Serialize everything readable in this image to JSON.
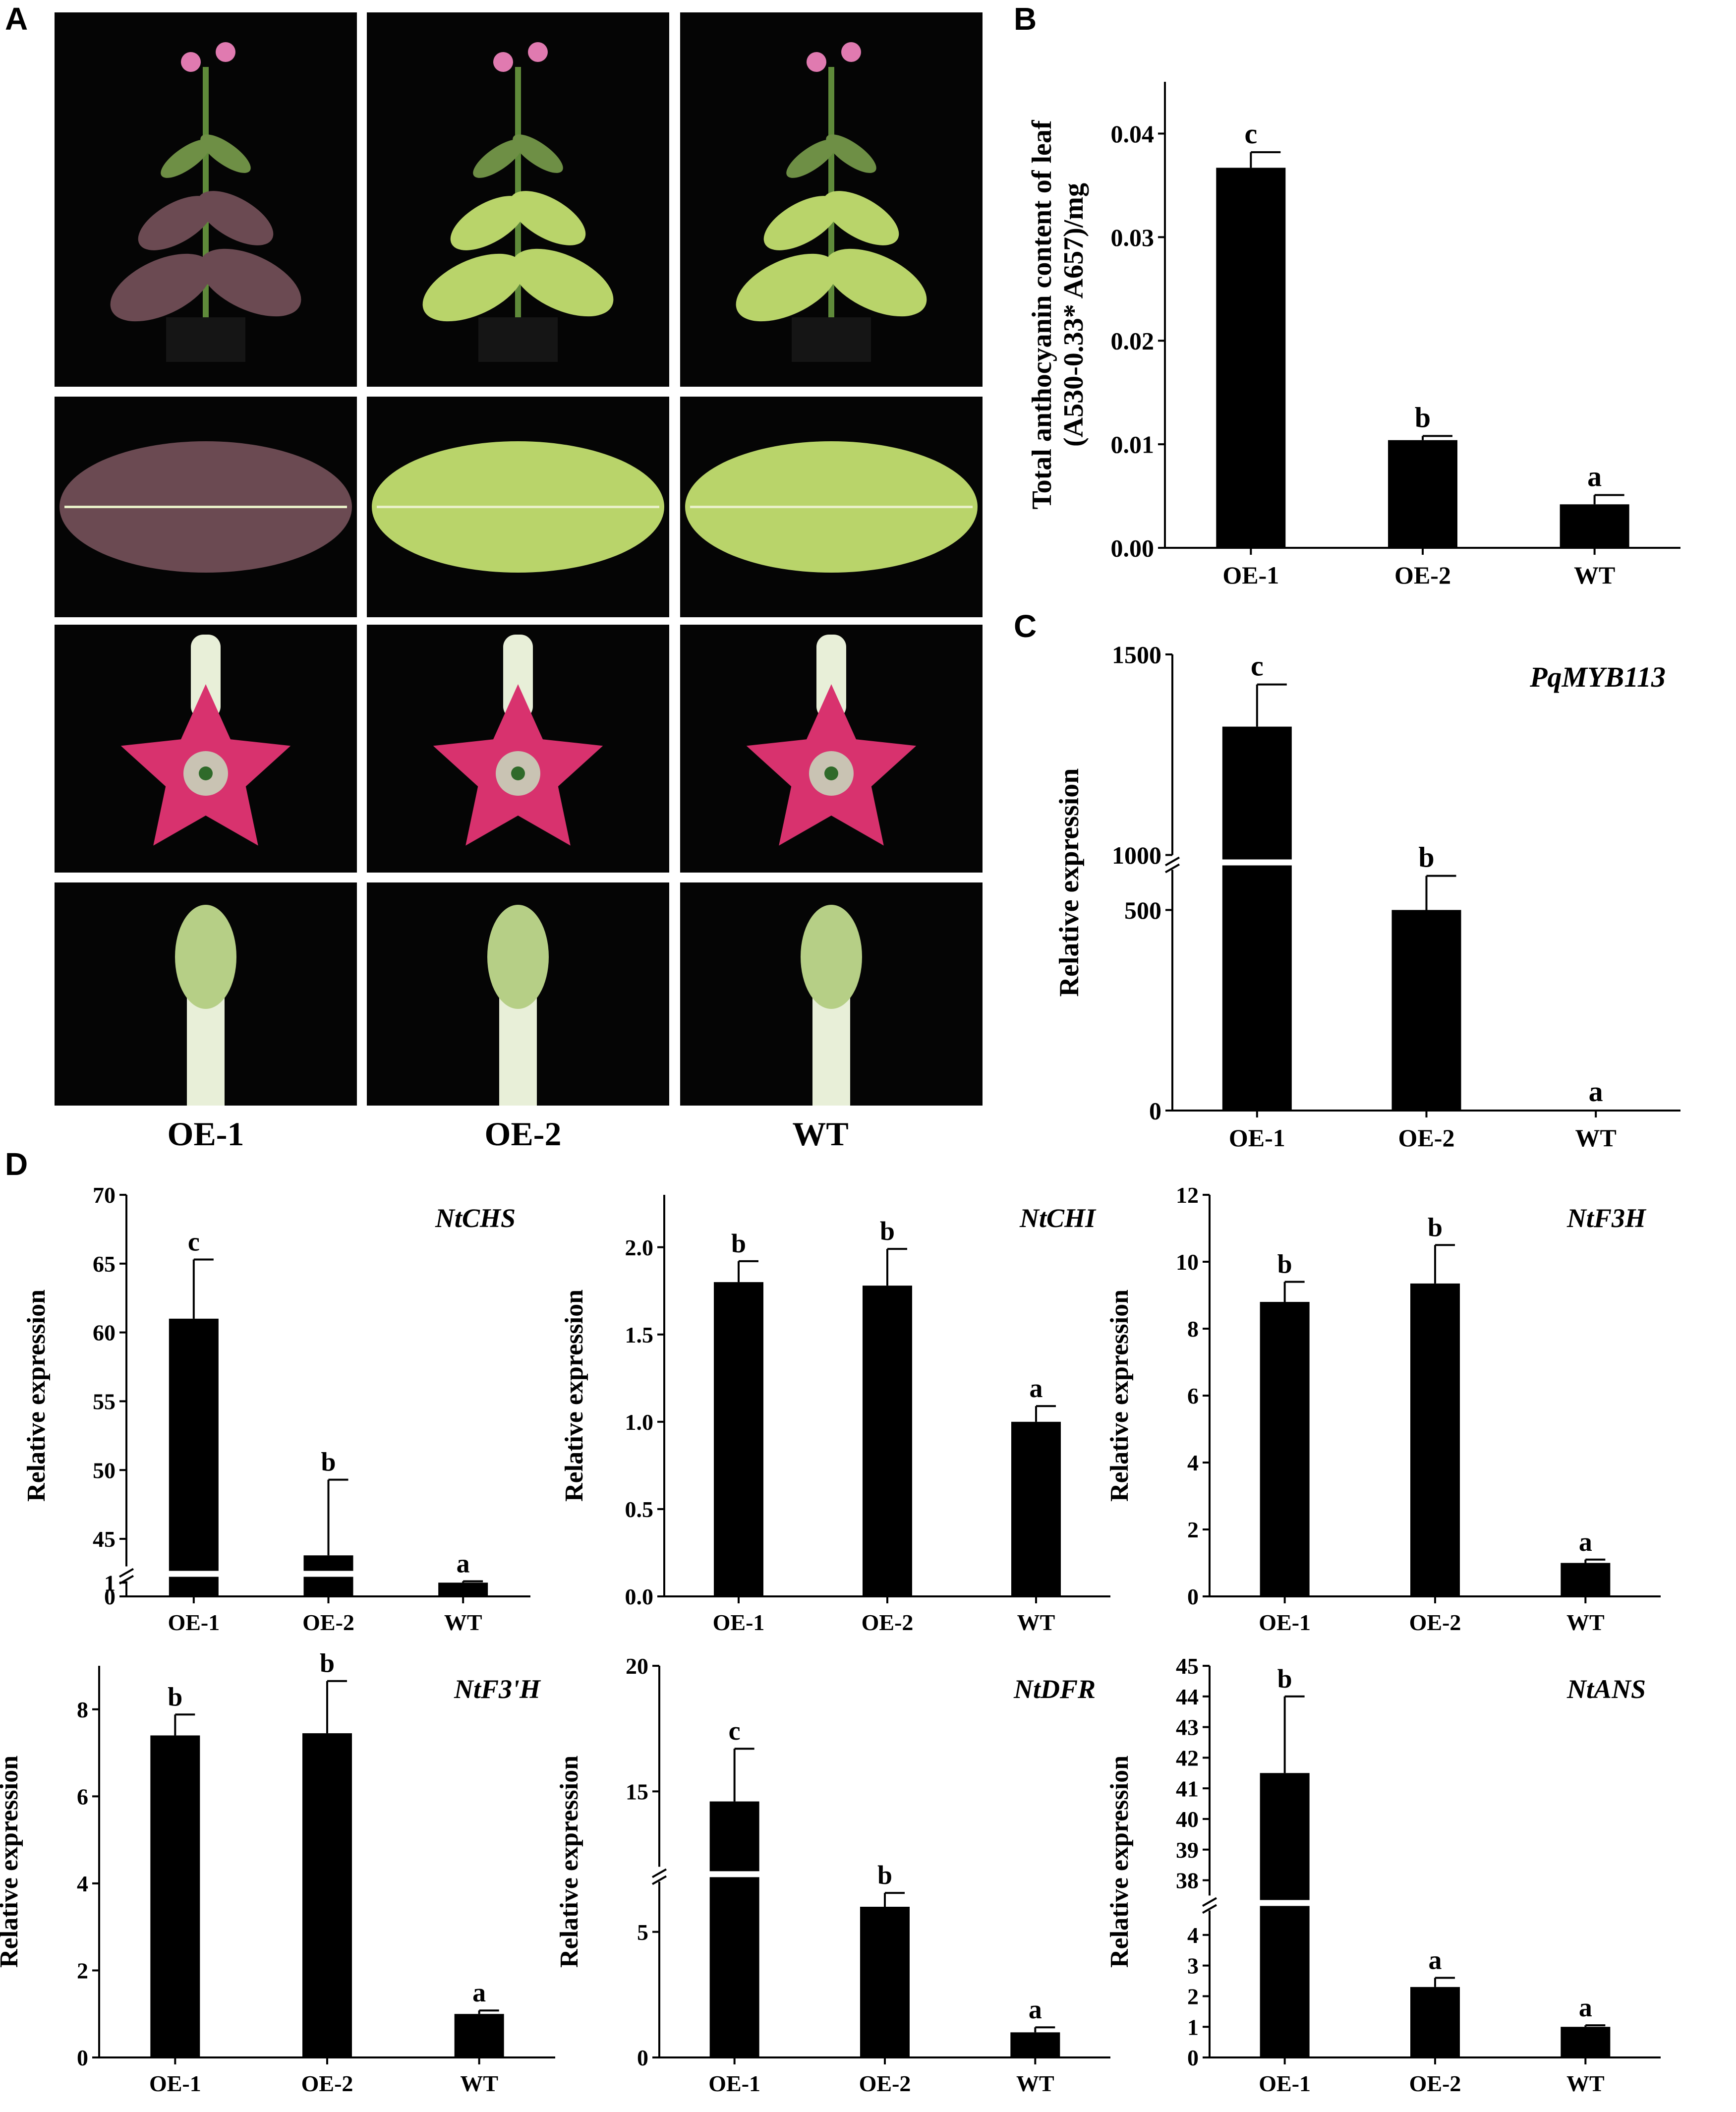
{
  "figure": {
    "panel_letters": [
      "A",
      "B",
      "C",
      "D"
    ],
    "photo_column_labels": [
      "OE-1",
      "OE-2",
      "WT"
    ],
    "photo_rows": [
      "whole plant",
      "leaf",
      "flower",
      "flower bud"
    ],
    "colors": {
      "bar": "#000000",
      "background_photo": "#050505",
      "leaf_purple": "#6b4a52",
      "leaf_green": "#b9d46a",
      "flower_pink": "#d8326e",
      "stem": "#e8efd8"
    }
  },
  "chart_data": [
    {
      "id": "B",
      "type": "bar",
      "categories": [
        "OE-1",
        "OE-2",
        "WT"
      ],
      "values": [
        0.0367,
        0.0104,
        0.0042
      ],
      "errors": [
        0.0015,
        0.0004,
        0.0009
      ],
      "letters": [
        "c",
        "b",
        "a"
      ],
      "ylabel_lines": [
        "Total anthocyanin content of leaf",
        "(A530-0.33* A657)/mg"
      ],
      "ylim": [
        0,
        0.045
      ],
      "yticks": [
        0.0,
        0.01,
        0.02,
        0.03,
        0.04
      ],
      "ytick_labels": [
        "0.00",
        "0.01",
        "0.02",
        "0.03",
        "0.04"
      ],
      "gene": ""
    },
    {
      "id": "C",
      "type": "bar",
      "categories": [
        "OE-1",
        "OE-2",
        "WT"
      ],
      "values": [
        1320,
        500,
        1
      ],
      "errors": [
        105,
        85,
        0
      ],
      "letters": [
        "c",
        "b",
        "a"
      ],
      "ylabel_lines": [
        "Relative expression"
      ],
      "gene": "PqMYB113",
      "axis_break": {
        "low": [
          0,
          600
        ],
        "high": [
          1000,
          1500
        ]
      },
      "yticks": [
        0,
        500,
        1000,
        1500
      ],
      "ytick_labels": [
        "0",
        "500",
        "1000",
        "1500"
      ]
    },
    {
      "id": "D1",
      "type": "bar",
      "categories": [
        "OE-1",
        "OE-2",
        "WT"
      ],
      "values": [
        61,
        43.8,
        1
      ],
      "errors": [
        4.3,
        5.5,
        0.1
      ],
      "letters": [
        "c",
        "b",
        "a"
      ],
      "ylabel_lines": [
        "Relative expression"
      ],
      "gene": "NtCHS",
      "axis_break": {
        "low": [
          0,
          1.1
        ],
        "high": [
          43,
          70
        ]
      },
      "yticks": [
        0,
        1,
        45,
        50,
        55,
        60,
        65,
        70
      ],
      "ytick_labels": [
        "0",
        "1",
        "45",
        "50",
        "55",
        "60",
        "65",
        "70"
      ]
    },
    {
      "id": "D2",
      "type": "bar",
      "categories": [
        "OE-1",
        "OE-2",
        "WT"
      ],
      "values": [
        1.8,
        1.78,
        1.0
      ],
      "errors": [
        0.12,
        0.21,
        0.09
      ],
      "letters": [
        "b",
        "b",
        "a"
      ],
      "ylabel_lines": [
        "Relative expression"
      ],
      "gene": "NtCHI",
      "ylim": [
        0,
        2.3
      ],
      "yticks": [
        0.0,
        0.5,
        1.0,
        1.5,
        2.0
      ],
      "ytick_labels": [
        "0.0",
        "0.5",
        "1.0",
        "1.5",
        "2.0"
      ]
    },
    {
      "id": "D3",
      "type": "bar",
      "categories": [
        "OE-1",
        "OE-2",
        "WT"
      ],
      "values": [
        8.8,
        9.35,
        1.0
      ],
      "errors": [
        0.6,
        1.15,
        0.1
      ],
      "letters": [
        "b",
        "b",
        "a"
      ],
      "ylabel_lines": [
        "Relative expression"
      ],
      "gene": "NtF3H",
      "ylim": [
        0,
        12
      ],
      "yticks": [
        0,
        2,
        4,
        6,
        8,
        10,
        12
      ],
      "ytick_labels": [
        "0",
        "2",
        "4",
        "6",
        "8",
        "10",
        "12"
      ]
    },
    {
      "id": "D4",
      "type": "bar",
      "categories": [
        "OE-1",
        "OE-2",
        "WT"
      ],
      "values": [
        7.4,
        7.45,
        1.0
      ],
      "errors": [
        0.48,
        1.2,
        0.08
      ],
      "letters": [
        "b",
        "b",
        "a"
      ],
      "ylabel_lines": [
        "Relative expression"
      ],
      "gene": "NtF3'H",
      "ylim": [
        0,
        9
      ],
      "yticks": [
        0,
        2,
        4,
        6,
        8
      ],
      "ytick_labels": [
        "0",
        "2",
        "4",
        "6",
        "8"
      ]
    },
    {
      "id": "D5",
      "type": "bar",
      "categories": [
        "OE-1",
        "OE-2",
        "WT"
      ],
      "values": [
        14.6,
        6.0,
        1.0
      ],
      "errors": [
        2.1,
        0.55,
        0.2
      ],
      "letters": [
        "c",
        "b",
        "a"
      ],
      "ylabel_lines": [
        "Relative expression"
      ],
      "gene": "NtDFR",
      "axis_break": {
        "low": [
          0,
          7
        ],
        "high": [
          12,
          20
        ]
      },
      "yticks": [
        0,
        5,
        15,
        20
      ],
      "ytick_labels": [
        "0",
        "5",
        "15",
        "20"
      ]
    },
    {
      "id": "D6",
      "type": "bar",
      "categories": [
        "OE-1",
        "OE-2",
        "WT"
      ],
      "values": [
        41.5,
        2.3,
        1.0
      ],
      "errors": [
        2.5,
        0.3,
        0.05
      ],
      "letters": [
        "b",
        "a",
        "a"
      ],
      "ylabel_lines": [
        "Relative expression"
      ],
      "gene": "NtANS",
      "axis_break": {
        "low": [
          0,
          4.8
        ],
        "high": [
          37.5,
          45
        ]
      },
      "yticks": [
        0,
        1,
        2,
        3,
        4,
        38,
        39,
        40,
        41,
        42,
        43,
        44,
        45
      ],
      "ytick_labels": [
        "0",
        "1",
        "2",
        "3",
        "4",
        "38",
        "39",
        "40",
        "41",
        "42",
        "43",
        "44",
        "45"
      ]
    }
  ]
}
